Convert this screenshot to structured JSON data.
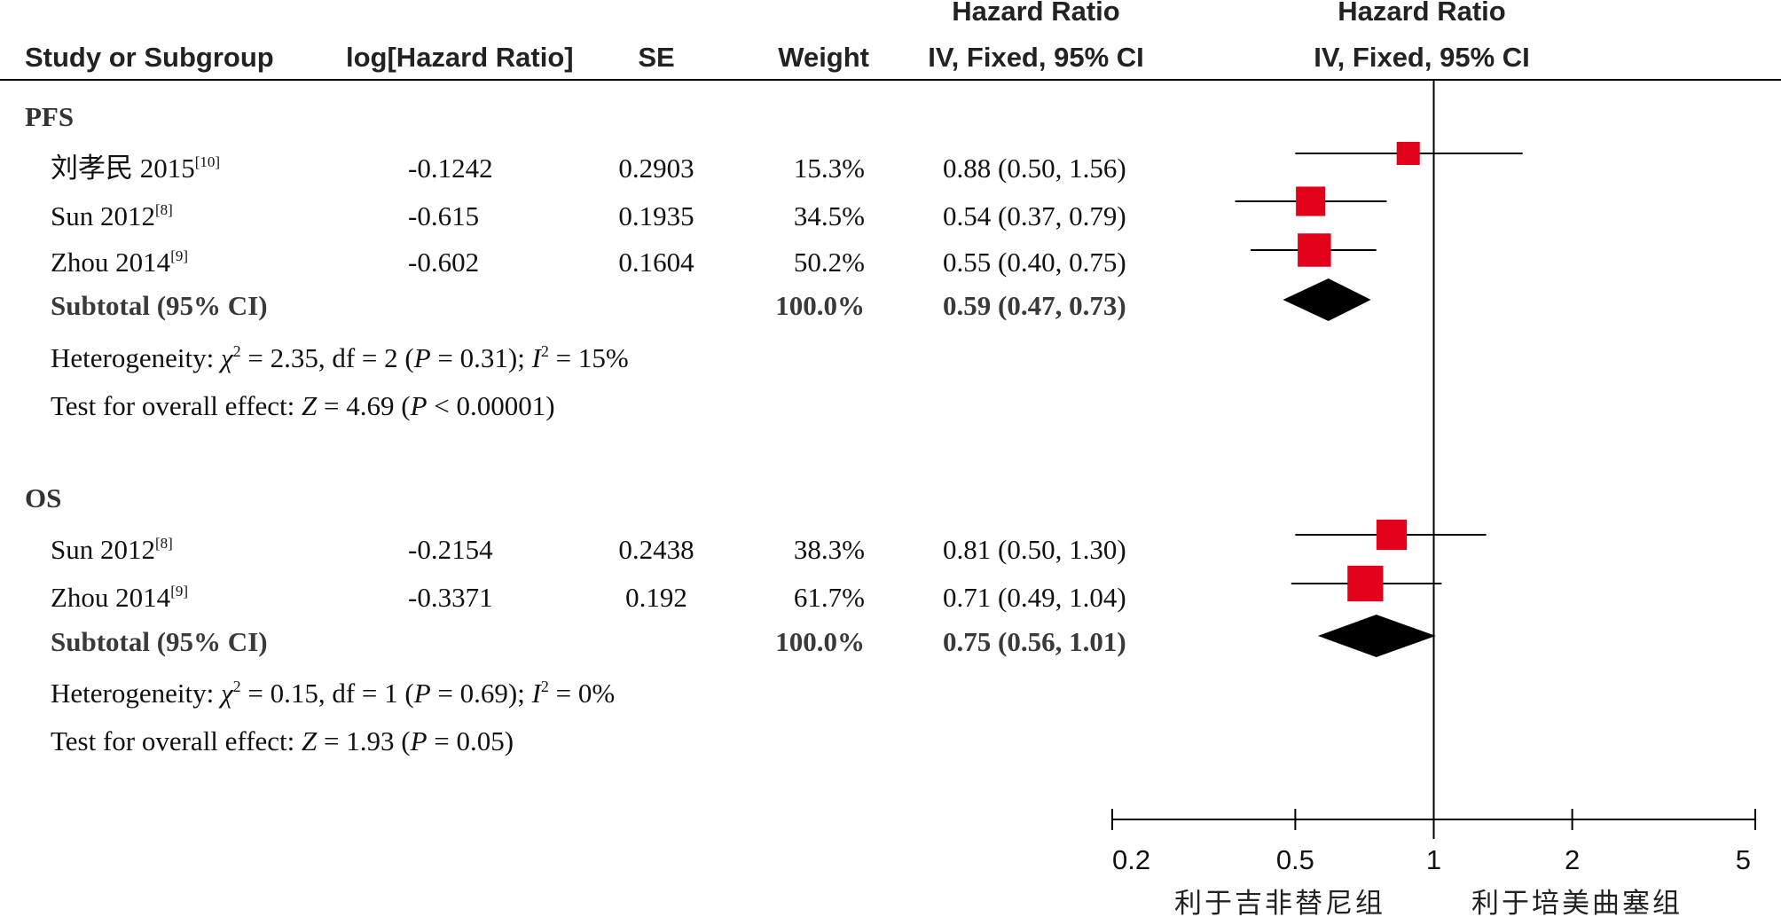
{
  "headers": {
    "study": "Study or Subgroup",
    "log_hr": "log[Hazard Ratio]",
    "se": "SE",
    "weight": "Weight",
    "hr_top": "Hazard Ratio",
    "hr_bottom": "IV, Fixed, 95% CI",
    "plot_top": "Hazard Ratio",
    "plot_bottom": "IV, Fixed, 95% CI"
  },
  "subgroups": [
    {
      "name": "PFS",
      "studies": [
        {
          "name": "刘孝民 2015",
          "ref": "[10]",
          "log_hr": "-0.1242",
          "se": "0.2903",
          "weight": "15.3%",
          "ci_text": "0.88 (0.50, 1.56)",
          "hr": 0.88,
          "lo": 0.5,
          "hi": 1.56,
          "w": 15.3
        },
        {
          "name": "Sun 2012",
          "ref": "[8]",
          "log_hr": "-0.615",
          "se": "0.1935",
          "weight": "34.5%",
          "ci_text": "0.54 (0.37, 0.79)",
          "hr": 0.54,
          "lo": 0.37,
          "hi": 0.79,
          "w": 34.5
        },
        {
          "name": "Zhou 2014",
          "ref": "[9]",
          "log_hr": "-0.602",
          "se": "0.1604",
          "weight": "50.2%",
          "ci_text": "0.55 (0.40, 0.75)",
          "hr": 0.55,
          "lo": 0.4,
          "hi": 0.75,
          "w": 50.2
        }
      ],
      "subtotal": {
        "label": "Subtotal (95% CI)",
        "weight": "100.0%",
        "ci_text": "0.59 (0.47, 0.73)",
        "hr": 0.59,
        "lo": 0.47,
        "hi": 0.73
      },
      "heterogeneity": {
        "prefix": "Heterogeneity: ",
        "chi": "χ",
        "chi_sq": "2",
        "chi_val": " = 2.35, df = 2 (",
        "p": "P",
        "p_val": " = 0.31); ",
        "i": "I",
        "i_sq": "2",
        "i_val": " = 15%"
      },
      "overall": {
        "prefix": "Test for overall effect: ",
        "z": "Z",
        "z_val": " = 4.69 (",
        "p": "P",
        "p_val": " < 0.00001)"
      }
    },
    {
      "name": "OS",
      "studies": [
        {
          "name": "Sun 2012",
          "ref": "[8]",
          "log_hr": "-0.2154",
          "se": "0.2438",
          "weight": "38.3%",
          "ci_text": "0.81 (0.50, 1.30)",
          "hr": 0.81,
          "lo": 0.5,
          "hi": 1.3,
          "w": 38.3
        },
        {
          "name": "Zhou 2014",
          "ref": "[9]",
          "log_hr": "-0.3371",
          "se": "0.192",
          "weight": "61.7%",
          "ci_text": "0.71 (0.49, 1.04)",
          "hr": 0.71,
          "lo": 0.49,
          "hi": 1.04,
          "w": 61.7
        }
      ],
      "subtotal": {
        "label": "Subtotal (95% CI)",
        "weight": "100.0%",
        "ci_text": "0.75 (0.56, 1.01)",
        "hr": 0.75,
        "lo": 0.56,
        "hi": 1.01
      },
      "heterogeneity": {
        "prefix": "Heterogeneity: ",
        "chi": "χ",
        "chi_sq": "2",
        "chi_val": " = 0.15, df = 1 (",
        "p": "P",
        "p_val": " = 0.69); ",
        "i": "I",
        "i_sq": "2",
        "i_val": " = 0%"
      },
      "overall": {
        "prefix": "Test for overall effect: ",
        "z": "Z",
        "z_val": " = 1.93 (",
        "p": "P",
        "p_val": " = 0.05)"
      }
    }
  ],
  "axis": {
    "scale": "log",
    "ticks": [
      0.2,
      0.5,
      1,
      2,
      5
    ],
    "tick_labels": [
      "0.2",
      "0.5",
      "1",
      "2",
      "5"
    ],
    "favours_left": "利于吉非替尼组",
    "favours_right": "利于培美曲塞组"
  },
  "colors": {
    "marker": "#e3001b",
    "diamond": "#000000",
    "line": "#000000"
  },
  "chart_data": {
    "type": "forest",
    "scale": "log",
    "xlim": [
      0.2,
      5
    ],
    "series": [
      {
        "name": "PFS",
        "studies": [
          "刘孝民 2015",
          "Sun 2012",
          "Zhou 2014"
        ],
        "hr": [
          0.88,
          0.54,
          0.55
        ],
        "lower": [
          0.5,
          0.37,
          0.4
        ],
        "upper": [
          1.56,
          0.79,
          0.75
        ],
        "weight": [
          15.3,
          34.5,
          50.2
        ],
        "subtotal": {
          "hr": 0.59,
          "lower": 0.47,
          "upper": 0.73
        }
      },
      {
        "name": "OS",
        "studies": [
          "Sun 2012",
          "Zhou 2014"
        ],
        "hr": [
          0.81,
          0.71
        ],
        "lower": [
          0.5,
          0.49
        ],
        "upper": [
          1.3,
          1.04
        ],
        "weight": [
          38.3,
          61.7
        ],
        "subtotal": {
          "hr": 0.75,
          "lower": 0.56,
          "upper": 1.01
        }
      }
    ]
  }
}
